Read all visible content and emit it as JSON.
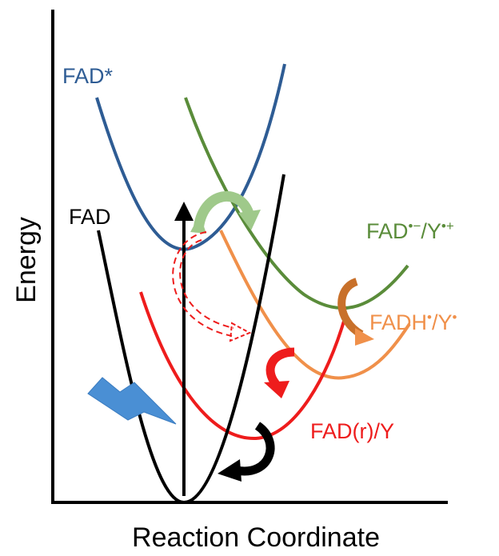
{
  "axes": {
    "y_label": "Energy",
    "x_label": "Reaction Coordinate"
  },
  "curves": {
    "fad": {
      "label": "FAD",
      "color": "#000000"
    },
    "fad_star": {
      "label": "FAD*",
      "color": "#2e5c94"
    },
    "fad_r": {
      "label": "FAD(r)/Y",
      "color": "#ee1c1c"
    },
    "fadh_y": {
      "label_main": "FADH",
      "label_mid": "/Y",
      "color": "#f0904a"
    },
    "fad_rad_y": {
      "label_main": "FAD",
      "label_sup1": "•−",
      "label_mid": "/Y",
      "label_sup2": "•+",
      "color": "#5a8c3a"
    }
  },
  "superscript_dot": "•",
  "arrow_colors": {
    "excitation": "#000000",
    "lightning": "#4a8fd4",
    "green_curved": "#9fc98a",
    "red_dashed": "#ee1c1c",
    "red_curved": "#ee1c1c",
    "orange_curved": "#c8702a",
    "black_curved": "#000000"
  }
}
